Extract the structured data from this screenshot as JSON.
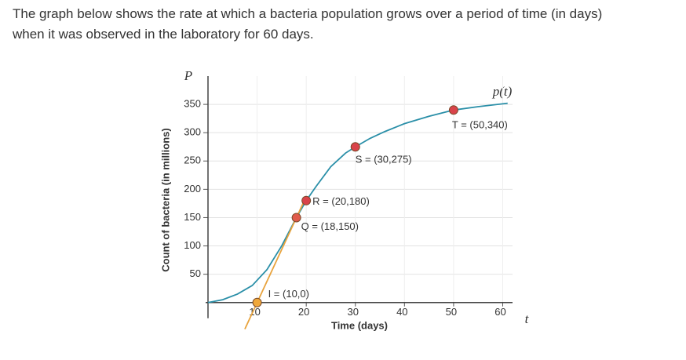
{
  "intro": [
    "The graph below shows the rate at which a bacteria population grows over a period of time (in days)",
    "when it was observed in the laboratory for 60 days."
  ],
  "chart_data": {
    "type": "line",
    "xlabel": "Time (days)",
    "ylabel": "Count of bacteria (in millions)",
    "x_axis_name": "t",
    "y_axis_name": "P",
    "curve_label": "p(t)",
    "xlim": [
      0,
      62
    ],
    "ylim": [
      -35,
      400
    ],
    "xticks": [
      10,
      20,
      30,
      40,
      50,
      60
    ],
    "yticks": [
      50,
      100,
      150,
      200,
      250,
      300,
      350
    ],
    "grid": true,
    "series": [
      {
        "color": "#2a8fa8",
        "x": [
          0,
          3,
          6,
          9,
          12,
          15,
          18,
          20,
          22,
          25,
          28,
          30,
          33,
          36,
          40,
          45,
          50,
          55,
          61
        ],
        "values": [
          0,
          5,
          15,
          30,
          58,
          100,
          150,
          180,
          205,
          240,
          264,
          275,
          290,
          302,
          316,
          329,
          340,
          346,
          352
        ]
      },
      {
        "color": "#e8a33d",
        "x": [
          7.5,
          19.5
        ],
        "values": [
          -47,
          178
        ]
      }
    ],
    "points": [
      {
        "label": "I = (10,0)",
        "x": 10,
        "y": 0,
        "color": "#f0a83a"
      },
      {
        "label": "Q = (18,150)",
        "x": 18,
        "y": 150,
        "color": "#e05a4a"
      },
      {
        "label": "R = (20,180)",
        "x": 20,
        "y": 180,
        "color": "#d9434a"
      },
      {
        "label": "S = (30,275)",
        "x": 30,
        "y": 275,
        "color": "#d9434a"
      },
      {
        "label": "T = (50,340)",
        "x": 50,
        "y": 340,
        "color": "#d9434a"
      }
    ]
  }
}
